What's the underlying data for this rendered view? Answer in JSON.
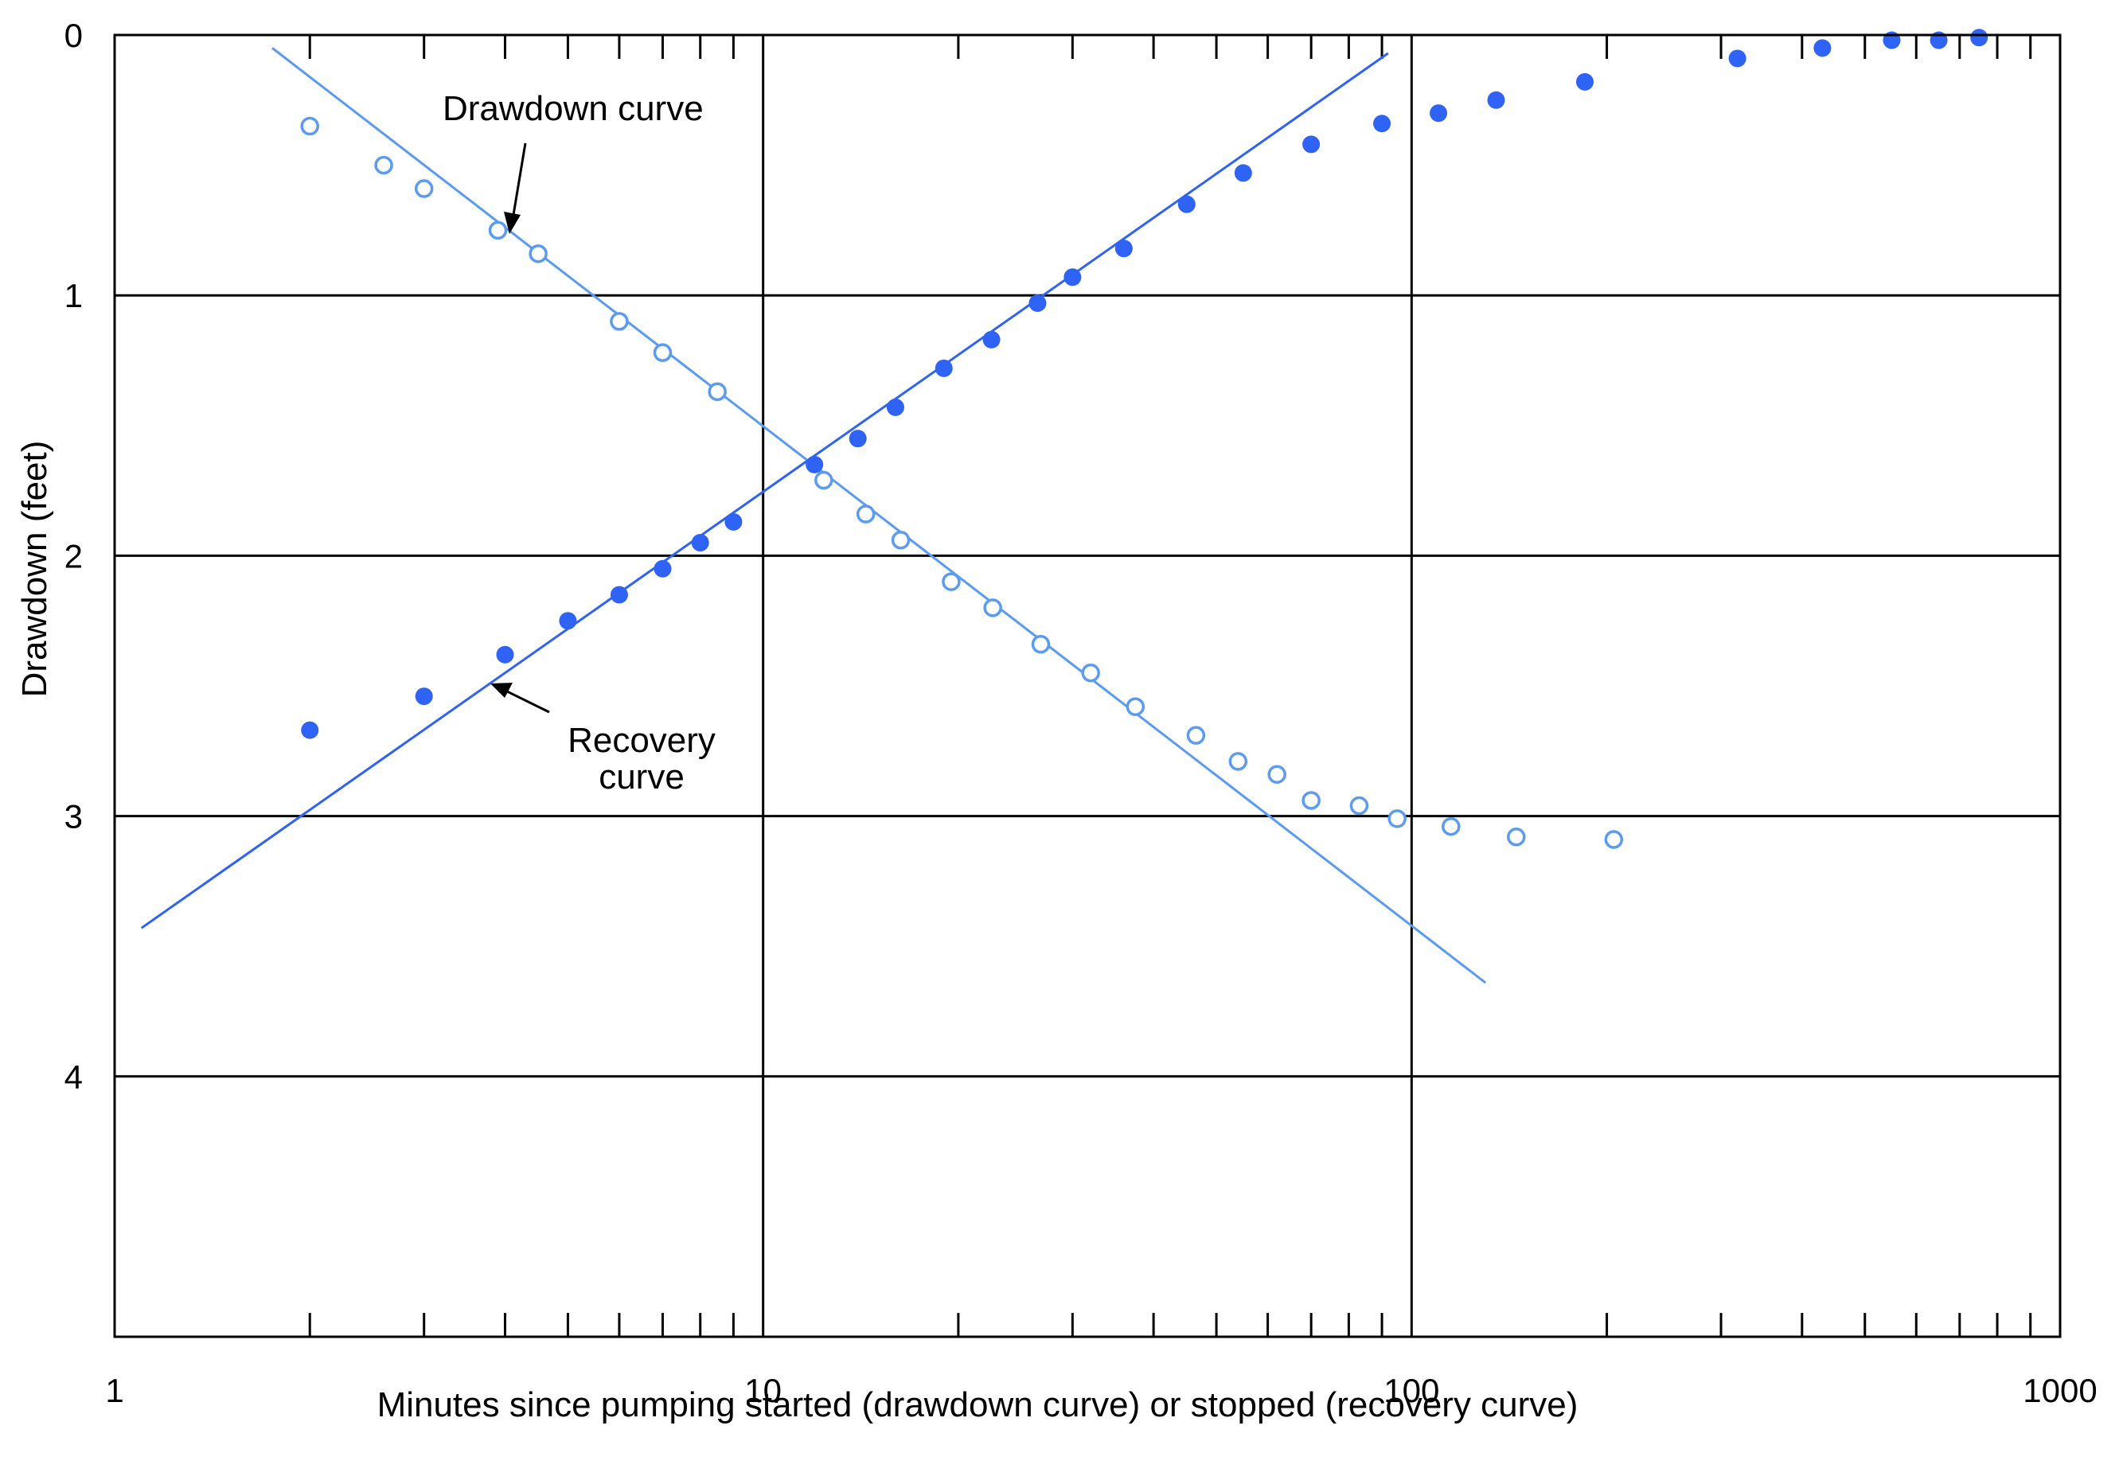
{
  "chart_data": {
    "type": "scatter",
    "x_scale": "log",
    "y_inverted": true,
    "xlim": [
      1,
      1000
    ],
    "ylim": [
      0,
      5
    ],
    "x_ticks": [
      1,
      10,
      100,
      1000
    ],
    "x_tick_labels": [
      "1",
      "10",
      "100",
      "1000"
    ],
    "y_ticks": [
      0,
      1,
      2,
      3,
      4
    ],
    "y_tick_labels": [
      "0",
      "1",
      "2",
      "3",
      "4"
    ],
    "xlabel": "Minutes since pumping started (drawdown curve) or stopped (recovery curve)",
    "ylabel": "Drawdown (feet)",
    "grid": true,
    "annotations": [
      {
        "label": "Drawdown curve"
      },
      {
        "label_line1": "Recovery",
        "label_line2": "curve"
      }
    ],
    "series": [
      {
        "marker": "open-circle",
        "color": "#5b9bf0",
        "points": [
          [
            2,
            0.35
          ],
          [
            2.6,
            0.5
          ],
          [
            3,
            0.59
          ],
          [
            3.9,
            0.75
          ],
          [
            4.5,
            0.84
          ],
          [
            6,
            1.1
          ],
          [
            7,
            1.22
          ],
          [
            8.5,
            1.37
          ],
          [
            12.4,
            1.71
          ],
          [
            14.4,
            1.84
          ],
          [
            16.3,
            1.94
          ],
          [
            19.5,
            2.1
          ],
          [
            22.6,
            2.2
          ],
          [
            26.8,
            2.34
          ],
          [
            32,
            2.45
          ],
          [
            37.5,
            2.58
          ],
          [
            46.5,
            2.69
          ],
          [
            54,
            2.79
          ],
          [
            62,
            2.84
          ],
          [
            70,
            2.94
          ],
          [
            83,
            2.96
          ],
          [
            95,
            3.01
          ],
          [
            115,
            3.04
          ],
          [
            145,
            3.08
          ],
          [
            205,
            3.09
          ]
        ]
      },
      {
        "marker": "filled-circle",
        "color": "#2f63f5",
        "points": [
          [
            2,
            2.67
          ],
          [
            3,
            2.54
          ],
          [
            4,
            2.38
          ],
          [
            5,
            2.25
          ],
          [
            6,
            2.15
          ],
          [
            7,
            2.05
          ],
          [
            8,
            1.95
          ],
          [
            9,
            1.87
          ],
          [
            12,
            1.65
          ],
          [
            14,
            1.55
          ],
          [
            16,
            1.43
          ],
          [
            19,
            1.28
          ],
          [
            22.5,
            1.17
          ],
          [
            26.5,
            1.03
          ],
          [
            30,
            0.93
          ],
          [
            36,
            0.82
          ],
          [
            45,
            0.65
          ],
          [
            55,
            0.53
          ],
          [
            70,
            0.42
          ],
          [
            90,
            0.34
          ],
          [
            110,
            0.3
          ],
          [
            135,
            0.25
          ],
          [
            185,
            0.18
          ],
          [
            318,
            0.09
          ],
          [
            430,
            0.05
          ],
          [
            550,
            0.02
          ],
          [
            650,
            0.02
          ],
          [
            750,
            0.01
          ]
        ]
      }
    ],
    "lines": [
      {
        "color": "#5b9bf0",
        "from": [
          1.75,
          0.05
        ],
        "to": [
          130,
          3.64
        ]
      },
      {
        "color": "#2f63f5",
        "from": [
          1.1,
          3.43
        ],
        "to": [
          92,
          0.07
        ]
      }
    ]
  }
}
